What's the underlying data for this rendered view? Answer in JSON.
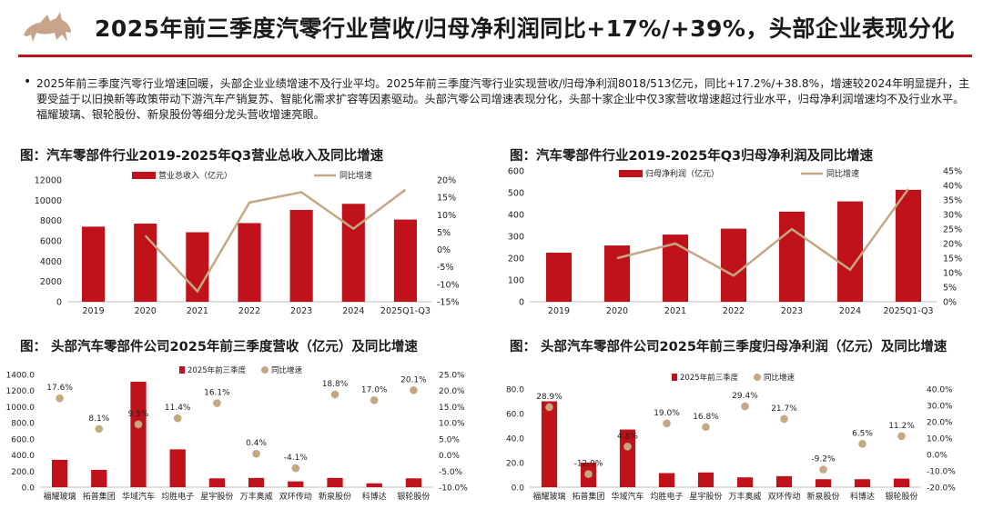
{
  "header": {
    "title": "2025年前三季度汽零行业营收/归母净利润同比+17%/+39%，头部企业表现分化"
  },
  "colors": {
    "bar": "#c0121b",
    "line": "#c4a882",
    "dot": "#c4a882",
    "rule": "#b9151d"
  },
  "summary": {
    "bullet": "•",
    "text": "2025年前三季度汽零行业增速回暖，头部企业业绩增速不及行业平均。2025年前三季度汽零行业实现营收/归母净利润8018/513亿元，同比+17.2%/+38.8%，增速较2024年明显提升，主要受益于以旧换新等政策带动下游汽车产销复苏、智能化需求扩容等因素驱动。头部汽零公司增速表现分化，头部十家企业中仅3家营收增速超过行业水平，归母净利润增速均不及行业水平。福耀玻璃、银轮股份、新泉股份等细分龙头营收增速亮眼。"
  },
  "chart_data": [
    {
      "type": "bar",
      "title": "图：汽车零部件行业2019-2025年Q3营业总收入及同比增速",
      "categories": [
        "2019",
        "2020",
        "2021",
        "2022",
        "2023",
        "2024",
        "2025Q1-Q3"
      ],
      "series": [
        {
          "name": "营业总收入（亿元）",
          "type": "bar",
          "values": [
            7400,
            7700,
            6850,
            7750,
            9050,
            9650,
            8100
          ]
        },
        {
          "name": "同比增速",
          "type": "line",
          "axis": "right",
          "values": [
            null,
            4,
            -12,
            13.5,
            16.5,
            6,
            17.2
          ]
        }
      ],
      "ylim": [
        0,
        12000
      ],
      "yticks": [
        "0",
        "2000",
        "4000",
        "6000",
        "8000",
        "10000",
        "12000"
      ],
      "y2lim": [
        -15,
        20
      ],
      "y2ticks": [
        "-15%",
        "-10%",
        "-5%",
        "0%",
        "5%",
        "10%",
        "15%",
        "20%"
      ],
      "legend": "top"
    },
    {
      "type": "bar",
      "title": "图：汽车零部件行业2019-2025年Q3归母净利润及同比增速",
      "categories": [
        "2019",
        "2020",
        "2021",
        "2022",
        "2023",
        "2024",
        "2025Q1-Q3"
      ],
      "series": [
        {
          "name": "归母净利润（亿元）",
          "type": "bar",
          "values": [
            225,
            258,
            308,
            335,
            413,
            460,
            513
          ]
        },
        {
          "name": "同比增速",
          "type": "line",
          "axis": "right",
          "values": [
            null,
            15,
            20,
            9,
            25,
            11,
            38.8
          ]
        }
      ],
      "ylim": [
        0,
        600
      ],
      "yticks": [
        "0",
        "100",
        "200",
        "300",
        "400",
        "500",
        "600"
      ],
      "y2lim": [
        0,
        45
      ],
      "y2ticks": [
        "0%",
        "5%",
        "10%",
        "15%",
        "20%",
        "25%",
        "30%",
        "35%",
        "40%",
        "45%"
      ],
      "legend": "top"
    },
    {
      "type": "bar",
      "title": "图： 头部汽车零部件公司2025年前三季度营收（亿元）及同比增速",
      "categories": [
        "福耀玻璃",
        "拓普集团",
        "华域汽车",
        "均胜电子",
        "星宇股份",
        "万丰奥威",
        "双环传动",
        "新泉股份",
        "科博达",
        "银轮股份"
      ],
      "series": [
        {
          "name": "2025年前三季度",
          "type": "bar",
          "values": [
            340,
            215,
            1310,
            470,
            110,
            115,
            72,
            115,
            48,
            110
          ]
        },
        {
          "name": "同比增速",
          "type": "scatter",
          "axis": "right",
          "values": [
            17.6,
            8.1,
            9.5,
            11.4,
            16.1,
            0.4,
            -4.1,
            18.8,
            17.0,
            20.1
          ],
          "labels": [
            "17.6%",
            "8.1%",
            "9.5%",
            "11.4%",
            "16.1%",
            "0.4%",
            "-4.1%",
            "18.8%",
            "17.0%",
            "20.1%"
          ]
        }
      ],
      "ylim": [
        0,
        1400
      ],
      "yticks": [
        "0.0",
        "200.0",
        "400.0",
        "600.0",
        "800.0",
        "1000.0",
        "1200.0",
        "1400.0"
      ],
      "y2lim": [
        -10,
        25
      ],
      "y2ticks": [
        "-10.0%",
        "-5.0%",
        "0.0%",
        "5.0%",
        "10.0%",
        "15.0%",
        "20.0%",
        "25.0%"
      ],
      "legend": "top"
    },
    {
      "type": "bar",
      "title": "图： 头部汽车零部件公司2025年前三季度归母净利润（亿元）及同比增速",
      "categories": [
        "福耀玻璃",
        "拓普集团",
        "华域汽车",
        "均胜电子",
        "星宇股份",
        "万丰奥威",
        "双环传动",
        "新泉股份",
        "科博达",
        "银轮股份"
      ],
      "series": [
        {
          "name": "2025年前三季度",
          "type": "bar",
          "values": [
            70,
            20,
            47,
            11.5,
            12,
            8,
            9,
            6.5,
            6.5,
            7
          ]
        },
        {
          "name": "同比增速",
          "type": "scatter",
          "axis": "right",
          "values": [
            28.9,
            -12.0,
            4.8,
            19.0,
            16.8,
            29.4,
            21.7,
            -9.2,
            6.5,
            11.2
          ],
          "labels": [
            "28.9%",
            "-12.0%",
            "4.8%",
            "19.0%",
            "16.8%",
            "29.4%",
            "21.7%",
            "-9.2%",
            "6.5%",
            "11.2%"
          ]
        }
      ],
      "ylim": [
        0,
        80
      ],
      "yticks": [
        "0.0",
        "20.0",
        "40.0",
        "60.0",
        "80.0"
      ],
      "y2lim": [
        -20,
        40
      ],
      "y2ticks": [
        "-20.0%",
        "-10.0%",
        "0.0%",
        "10.0%",
        "20.0%",
        "30.0%",
        "40.0%"
      ],
      "legend": "top"
    }
  ]
}
